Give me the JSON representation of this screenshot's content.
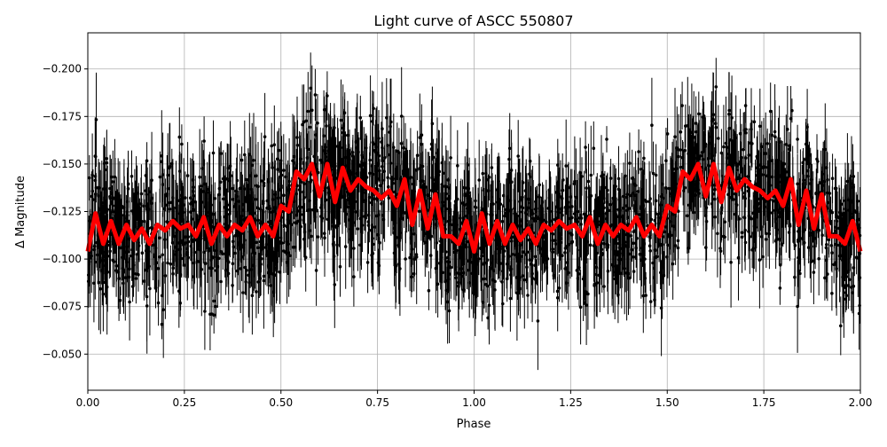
{
  "chart_data": {
    "type": "scatter",
    "title": "Light curve of ASCC 550807",
    "xlabel": "Phase",
    "ylabel": "Δ Magnitude",
    "xlim": [
      0.0,
      2.0
    ],
    "ylim": [
      -0.031,
      -0.219
    ],
    "y_inverted": true,
    "grid": true,
    "legend": null,
    "xticks": [
      "0.00",
      "0.25",
      "0.50",
      "0.75",
      "1.00",
      "1.25",
      "1.50",
      "1.75",
      "2.00"
    ],
    "yticks": [
      "−0.200",
      "−0.175",
      "−0.150",
      "−0.125",
      "−0.100",
      "−0.075",
      "−0.050"
    ],
    "series": [
      {
        "name": "observations",
        "style": "black points with error bars",
        "color": "#000000",
        "description": "dense scatter spanning approx −0.035 to −0.215 across all phases",
        "typical_center": -0.12,
        "typical_spread": 0.045
      },
      {
        "name": "model",
        "style": "thick red line",
        "color": "#ff0000",
        "period_in_phase": 1.0,
        "x": [
          0.0,
          0.02,
          0.04,
          0.06,
          0.08,
          0.1,
          0.12,
          0.14,
          0.16,
          0.18,
          0.2,
          0.22,
          0.24,
          0.26,
          0.28,
          0.3,
          0.32,
          0.34,
          0.36,
          0.38,
          0.4,
          0.42,
          0.44,
          0.46,
          0.48,
          0.5,
          0.52,
          0.54,
          0.56,
          0.58,
          0.6,
          0.62,
          0.64,
          0.66,
          0.68,
          0.7,
          0.72,
          0.74,
          0.76,
          0.78,
          0.8,
          0.82,
          0.84,
          0.86,
          0.88,
          0.9,
          0.92,
          0.94,
          0.96,
          0.98,
          1.0
        ],
        "values": [
          -0.104,
          -0.124,
          -0.108,
          -0.12,
          -0.108,
          -0.118,
          -0.11,
          -0.116,
          -0.108,
          -0.118,
          -0.115,
          -0.12,
          -0.116,
          -0.118,
          -0.112,
          -0.122,
          -0.108,
          -0.118,
          -0.112,
          -0.118,
          -0.115,
          -0.122,
          -0.112,
          -0.118,
          -0.112,
          -0.128,
          -0.125,
          -0.146,
          -0.142,
          -0.15,
          -0.133,
          -0.15,
          -0.13,
          -0.148,
          -0.136,
          -0.142,
          -0.138,
          -0.136,
          -0.132,
          -0.136,
          -0.128,
          -0.142,
          -0.118,
          -0.136,
          -0.116,
          -0.134,
          -0.112,
          -0.112,
          -0.108,
          -0.12,
          -0.104
        ]
      }
    ]
  }
}
